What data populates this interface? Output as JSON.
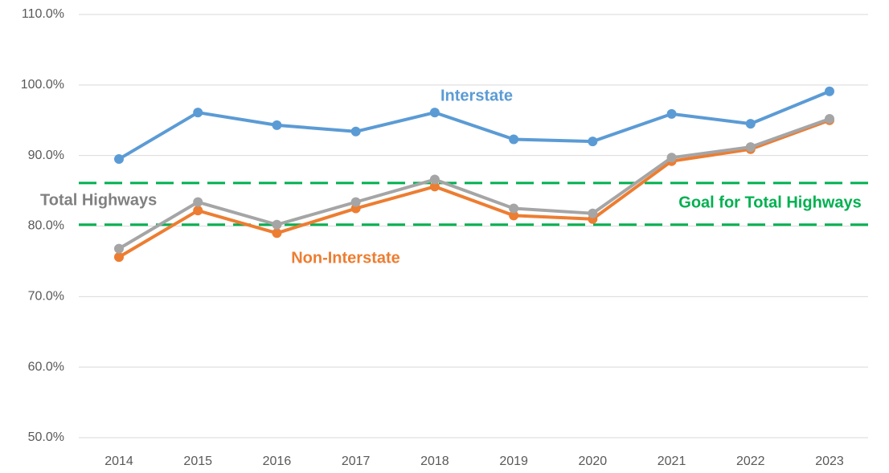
{
  "chart_data": {
    "type": "line",
    "categories": [
      "2014",
      "2015",
      "2016",
      "2017",
      "2018",
      "2019",
      "2020",
      "2021",
      "2022",
      "2023"
    ],
    "series": [
      {
        "name": "Interstate",
        "color": "#5b9bd5",
        "values": [
          89.5,
          96.1,
          94.3,
          93.4,
          96.1,
          92.3,
          92.0,
          95.9,
          94.5,
          99.1
        ]
      },
      {
        "name": "Non-Interstate",
        "color": "#ed7d31",
        "values": [
          75.6,
          82.2,
          79.0,
          82.5,
          85.6,
          81.5,
          81.0,
          89.2,
          90.9,
          95.0
        ]
      },
      {
        "name": "Total Highways",
        "color": "#a5a5a5",
        "values": [
          76.8,
          83.4,
          80.2,
          83.4,
          86.6,
          82.5,
          81.8,
          89.7,
          91.2,
          95.2
        ]
      }
    ],
    "goal": {
      "label": "Goal for Total Highways",
      "color": "#00b050",
      "values": [
        86.1,
        80.2
      ]
    },
    "ylim": [
      50,
      110
    ],
    "yticks": [
      {
        "value": 50,
        "label": "50.0%"
      },
      {
        "value": 60,
        "label": "60.0%"
      },
      {
        "value": 70,
        "label": "70.0%"
      },
      {
        "value": 80,
        "label": "80.0%"
      },
      {
        "value": 90,
        "label": "90.0%"
      },
      {
        "value": 100,
        "label": "100.0%"
      },
      {
        "value": 110,
        "label": "110.0%"
      }
    ],
    "grid": true
  }
}
